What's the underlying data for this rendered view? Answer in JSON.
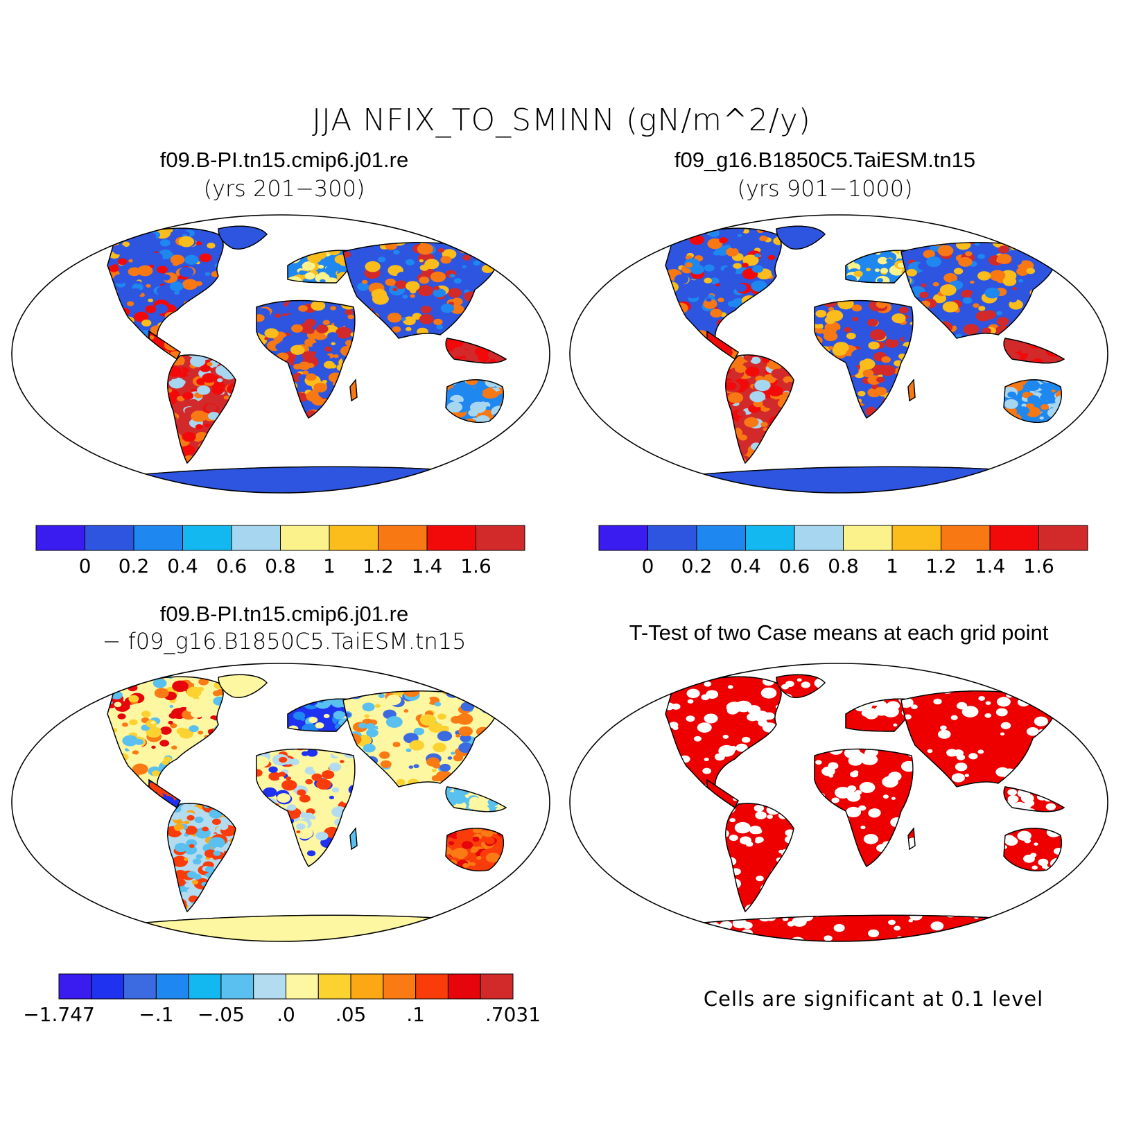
{
  "title": "JJA NFIX_TO_SMINN (gN/m^2/y)",
  "panels": {
    "top_left": {
      "case": "f09.B-PI.tn15.cmip6.j01.re",
      "years": "(yrs 201−300)"
    },
    "top_right": {
      "case": "f09_g16.B1850C5.TaiESM.tn15",
      "years": "(yrs 901−1000)"
    },
    "bottom_left": {
      "case": "f09.B-PI.tn15.cmip6.j01.re",
      "minus": "− f09_g16.B1850C5.TaiESM.tn15"
    },
    "bottom_right": {
      "title": "T-Test of two Case means at each grid point",
      "note": "Cells are significant at 0.1 level"
    }
  },
  "colorbar_abs": {
    "colors": [
      "#3a1cf0",
      "#2e55e0",
      "#1f87f0",
      "#14b8f0",
      "#a6d6f0",
      "#fbf28c",
      "#fbbd1c",
      "#f87814",
      "#f20a0a",
      "#d22a2a"
    ],
    "labels": [
      "0",
      "0.2",
      "0.4",
      "0.6",
      "0.8",
      "1",
      "1.2",
      "1.4",
      "1.6"
    ]
  },
  "colorbar_diff": {
    "colors": [
      "#3a1cf0",
      "#1e32f0",
      "#3c6ae0",
      "#1f87f0",
      "#14b8f0",
      "#5ac0f0",
      "#b4dcf0",
      "#fcf7a0",
      "#fcd230",
      "#fca814",
      "#fa7a14",
      "#fa3c0a",
      "#e6050a",
      "#d22a2a"
    ],
    "labels": [
      "−1.747",
      "−.1",
      "−.05",
      ".0",
      ".05",
      ".1",
      ".7031"
    ]
  },
  "ttest_color": "#ee0000"
}
